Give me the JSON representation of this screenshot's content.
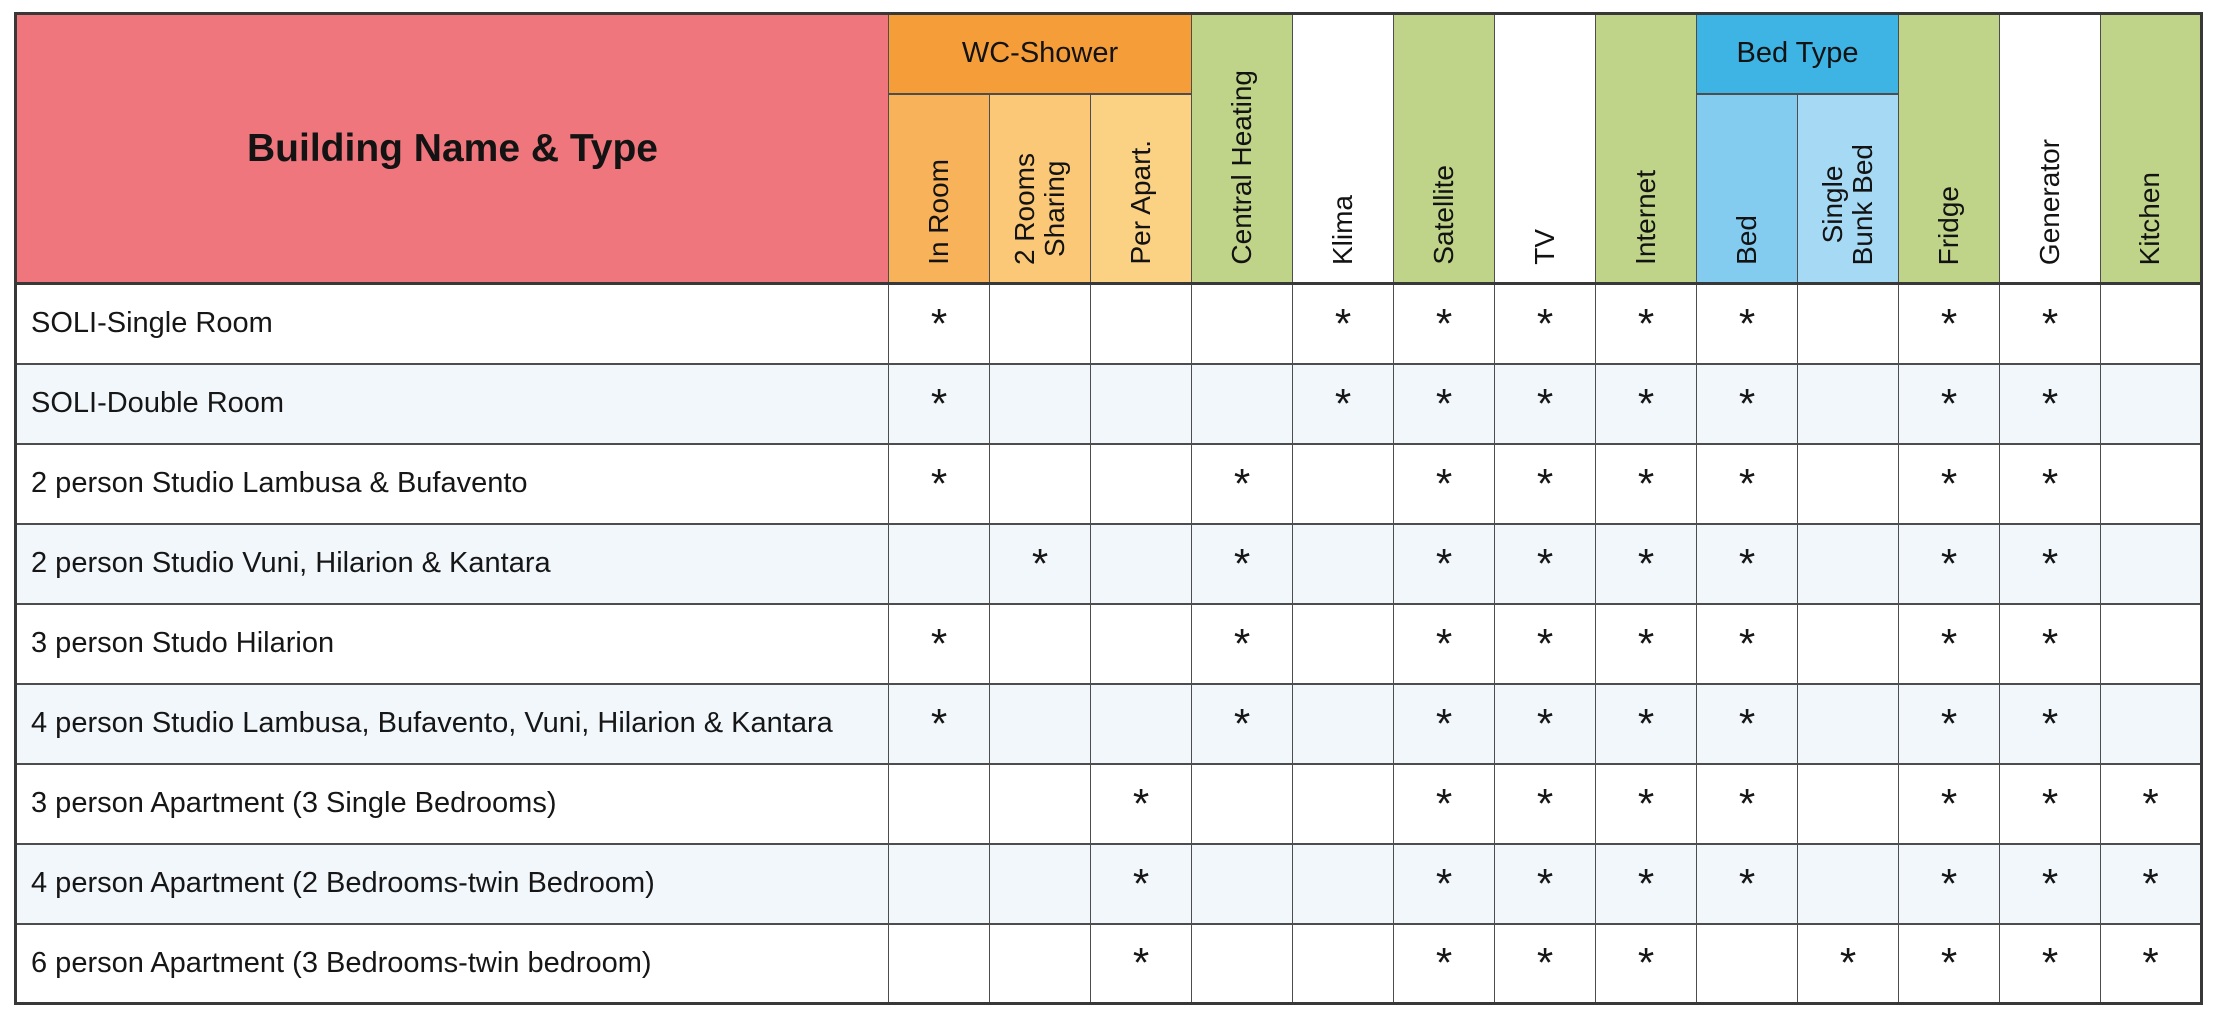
{
  "table": {
    "corner_label": "Building Name & Type",
    "mark_char": "*",
    "groups": [
      {
        "id": "wc-shower",
        "label": "WC-Shower",
        "start": 0,
        "count": 3,
        "bg": "#f59e39"
      },
      {
        "id": "bed-type",
        "label": "Bed Type",
        "start": 8,
        "count": 2,
        "bg": "#3db4e4"
      }
    ],
    "columns": [
      {
        "id": "in-room",
        "label": "In Room",
        "bg": "#f8b25a"
      },
      {
        "id": "2-rooms-sharing",
        "label": "2 Rooms\nSharing",
        "bg": "#fac877"
      },
      {
        "id": "per-apart",
        "label": "Per Apart.",
        "bg": "#fbd184"
      },
      {
        "id": "central-heating",
        "label": "Central Heating",
        "bg": "#bfd488"
      },
      {
        "id": "klima",
        "label": "Klima",
        "bg": "#ffffff"
      },
      {
        "id": "satellite",
        "label": "Satellite",
        "bg": "#bfd488"
      },
      {
        "id": "tv",
        "label": "TV",
        "bg": "#ffffff"
      },
      {
        "id": "internet",
        "label": "Internet",
        "bg": "#bfd488"
      },
      {
        "id": "bed",
        "label": "Bed",
        "bg": "#83ccf0"
      },
      {
        "id": "single-bunk-bed",
        "label": "Single\nBunk Bed",
        "bg": "#a6daf4"
      },
      {
        "id": "fridge",
        "label": "Fridge",
        "bg": "#bfd488"
      },
      {
        "id": "generator",
        "label": "Generator",
        "bg": "#ffffff"
      },
      {
        "id": "kitchen",
        "label": "Kitchen",
        "bg": "#bfd488"
      }
    ],
    "rows": [
      {
        "name": "SOLI-Single Room",
        "marks": [
          1,
          0,
          0,
          0,
          1,
          1,
          1,
          1,
          1,
          0,
          1,
          1,
          0
        ]
      },
      {
        "name": "SOLI-Double Room",
        "marks": [
          1,
          0,
          0,
          0,
          1,
          1,
          1,
          1,
          1,
          0,
          1,
          1,
          0
        ]
      },
      {
        "name": "2 person Studio Lambusa & Bufavento",
        "marks": [
          1,
          0,
          0,
          1,
          0,
          1,
          1,
          1,
          1,
          0,
          1,
          1,
          0
        ]
      },
      {
        "name": "2 person Studio Vuni, Hilarion & Kantara",
        "marks": [
          0,
          1,
          0,
          1,
          0,
          1,
          1,
          1,
          1,
          0,
          1,
          1,
          0
        ]
      },
      {
        "name": "3 person Studo Hilarion",
        "marks": [
          1,
          0,
          0,
          1,
          0,
          1,
          1,
          1,
          1,
          0,
          1,
          1,
          0
        ]
      },
      {
        "name": "4 person Studio Lambusa, Bufavento, Vuni, Hilarion & Kantara",
        "marks": [
          1,
          0,
          0,
          1,
          0,
          1,
          1,
          1,
          1,
          0,
          1,
          1,
          0
        ]
      },
      {
        "name": "3 person Apartment (3 Single Bedrooms)",
        "marks": [
          0,
          0,
          1,
          0,
          0,
          1,
          1,
          1,
          1,
          0,
          1,
          1,
          1
        ]
      },
      {
        "name": "4 person Apartment (2 Bedrooms-twin Bedroom)",
        "marks": [
          0,
          0,
          1,
          0,
          0,
          1,
          1,
          1,
          1,
          0,
          1,
          1,
          1
        ]
      },
      {
        "name": "6 person Apartment (3 Bedrooms-twin bedroom)",
        "marks": [
          0,
          0,
          1,
          0,
          0,
          1,
          1,
          1,
          0,
          1,
          1,
          1,
          1
        ]
      }
    ],
    "colors": {
      "corner_bg": "#ee767c",
      "green_header": "#bfd488",
      "alt_row_bg": "#f2f7fc",
      "border": "#4d4d4d"
    }
  }
}
